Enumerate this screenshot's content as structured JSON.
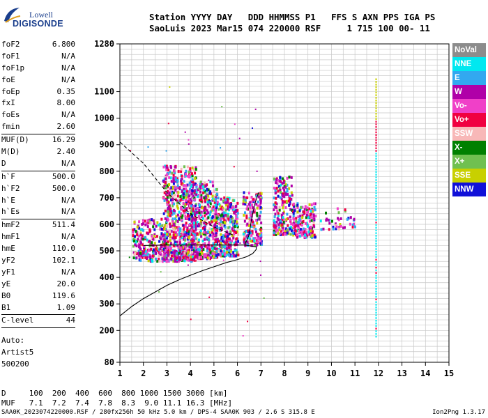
{
  "logo": {
    "line1": "Lowell",
    "line2": "DIGISONDE"
  },
  "header": {
    "line1": "Station YYYY DAY   DDD HHMMSS P1   FFS S AXN PPS IGA PS",
    "line2": "SaoLuis 2023 Mar15 074 220000 RSF     1 715 100 00- 11"
  },
  "params": [
    {
      "name": "foF2",
      "value": "6.800"
    },
    {
      "name": "foF1",
      "value": "N/A"
    },
    {
      "name": "foF1p",
      "value": "N/A"
    },
    {
      "name": "foE",
      "value": "N/A"
    },
    {
      "name": "foEp",
      "value": "0.35"
    },
    {
      "name": "fxI",
      "value": "8.00"
    },
    {
      "name": "foEs",
      "value": "N/A"
    },
    {
      "name": "fmin",
      "value": "2.60",
      "sep": true
    },
    {
      "name": "MUF(D)",
      "value": "16.29"
    },
    {
      "name": "M(D)",
      "value": "2.40"
    },
    {
      "name": "D",
      "value": "N/A",
      "sep": true
    },
    {
      "name": "h`F",
      "value": "500.0"
    },
    {
      "name": "h`F2",
      "value": "500.0"
    },
    {
      "name": "h`E",
      "value": "N/A"
    },
    {
      "name": "h`Es",
      "value": "N/A",
      "sep": true
    },
    {
      "name": "hmF2",
      "value": "511.4"
    },
    {
      "name": "hmF1",
      "value": "N/A"
    },
    {
      "name": "hmE",
      "value": "110.0"
    },
    {
      "name": "yF2",
      "value": "102.1"
    },
    {
      "name": "yF1",
      "value": "N/A"
    },
    {
      "name": "yE",
      "value": "20.0"
    },
    {
      "name": "B0",
      "value": "119.6"
    },
    {
      "name": "B1",
      "value": "1.09",
      "sep": true
    },
    {
      "name": "C-level",
      "value": "44",
      "sep": true
    }
  ],
  "auto": {
    "line1": "Auto:",
    "line2": "Artist5",
    "line3": "500200"
  },
  "legend": [
    {
      "label": "NoVal",
      "color": "#8c8c8c"
    },
    {
      "label": "NNE",
      "color": "#00e8f0"
    },
    {
      "label": "E",
      "color": "#32a8f0"
    },
    {
      "label": "W",
      "color": "#b000a8"
    },
    {
      "label": "Vo-",
      "color": "#f040c8"
    },
    {
      "label": "Vo+",
      "color": "#f00040"
    },
    {
      "label": "SSW",
      "color": "#f8b8b8"
    },
    {
      "label": "X-",
      "color": "#008000"
    },
    {
      "label": "X+",
      "color": "#70c050"
    },
    {
      "label": "SSE",
      "color": "#c8d000"
    },
    {
      "label": "NNW",
      "color": "#1010d8"
    }
  ],
  "muf": {
    "line1": "D     100  200  400  600  800 1000 1500 3000 [km]",
    "line2": "MUF   7.1  7.2  7.4  7.8  8.3  9.0 11.1 16.3 [MHz]"
  },
  "footer": {
    "file": "SAA0K_2023074220000.RSF / 280fx256h 50 kHz 5.0 km / DPS-4 SAA0K 903 / 2.6 S 315.8 E",
    "version": "Ion2Png 1.3.17"
  },
  "chart_data": {
    "type": "scatter",
    "xlim": [
      1,
      15
    ],
    "ylim": [
      80,
      1280
    ],
    "x_ticks": [
      1,
      2,
      3,
      4,
      5,
      6,
      7,
      8,
      9,
      10,
      11,
      12,
      13,
      14,
      15
    ],
    "y_ticks": [
      80,
      200,
      300,
      400,
      500,
      600,
      700,
      800,
      900,
      1000,
      1100,
      1280
    ],
    "grid": true,
    "clusters": [
      {
        "x": [
          1.5,
          3.0
        ],
        "y": [
          460,
          620
        ],
        "n": 260
      },
      {
        "x": [
          2.8,
          4.2
        ],
        "y": [
          460,
          820
        ],
        "n": 700
      },
      {
        "x": [
          4.0,
          5.1
        ],
        "y": [
          470,
          760
        ],
        "n": 420
      },
      {
        "x": [
          5.0,
          6.0
        ],
        "y": [
          480,
          700
        ],
        "n": 330
      },
      {
        "x": [
          6.2,
          7.0
        ],
        "y": [
          520,
          720
        ],
        "n": 180
      },
      {
        "x": [
          7.5,
          8.3
        ],
        "y": [
          560,
          780
        ],
        "n": 200
      },
      {
        "x": [
          8.3,
          9.3
        ],
        "y": [
          550,
          680
        ],
        "n": 170
      },
      {
        "x": [
          9.5,
          11.0
        ],
        "y": [
          580,
          660
        ],
        "n": 40
      }
    ],
    "vertical_column": {
      "x": 11.9,
      "y": [
        180,
        1150
      ]
    },
    "profile_curve": [
      [
        1,
        255
      ],
      [
        1.5,
        290
      ],
      [
        2,
        320
      ],
      [
        2.5,
        345
      ],
      [
        3,
        370
      ],
      [
        3.5,
        390
      ],
      [
        4,
        408
      ],
      [
        4.5,
        425
      ],
      [
        5,
        440
      ],
      [
        5.5,
        455
      ],
      [
        6,
        467
      ],
      [
        6.4,
        478
      ],
      [
        6.65,
        490
      ],
      [
        6.8,
        505
      ],
      [
        6.8,
        515
      ],
      [
        6.3,
        522
      ],
      [
        3,
        522
      ],
      [
        2,
        520
      ]
    ],
    "profile_dashed": [
      [
        1,
        910
      ],
      [
        2,
        830
      ],
      [
        3,
        720
      ],
      [
        4,
        640
      ],
      [
        5,
        590
      ],
      [
        5.8,
        560
      ]
    ],
    "trace_x_mode": [
      [
        6.3,
        520
      ],
      [
        6.5,
        560
      ],
      [
        6.6,
        620
      ],
      [
        6.75,
        680
      ],
      [
        6.9,
        720
      ]
    ]
  }
}
